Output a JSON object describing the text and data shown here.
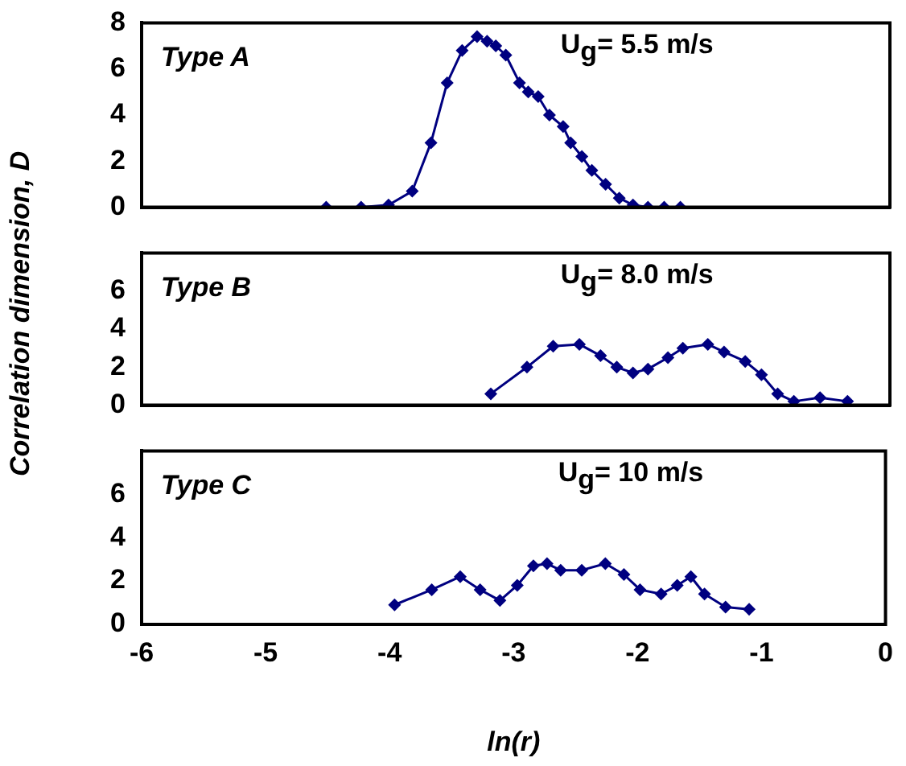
{
  "chart_data": [
    {
      "type": "line",
      "annotations": [
        "Type A",
        "U$_{g}$= 5.5 m/s"
      ],
      "xlim": [
        -6,
        0
      ],
      "xticks": [
        -6,
        -5,
        -4,
        -3,
        -2,
        -1,
        0
      ],
      "ylim": [
        0,
        8
      ],
      "yticks": [
        0,
        2,
        4,
        6,
        8
      ],
      "tick_labels": "y",
      "marker": "diamond",
      "grid": false,
      "legend": false,
      "series": [
        {
          "color": "#000080",
          "x": [
            -4.52,
            -4.24,
            -4.02,
            -3.83,
            -3.68,
            -3.55,
            -3.43,
            -3.31,
            -3.23,
            -3.16,
            -3.08,
            -2.97,
            -2.9,
            -2.82,
            -2.73,
            -2.62,
            -2.56,
            -2.47,
            -2.39,
            -2.28,
            -2.17,
            -2.06,
            -1.94,
            -1.81,
            -1.68
          ],
          "values": [
            0,
            0,
            0.1,
            0.7,
            2.8,
            5.4,
            6.8,
            7.4,
            7.2,
            7.0,
            6.6,
            5.4,
            5.0,
            4.8,
            4.0,
            3.5,
            2.8,
            2.2,
            1.6,
            1.0,
            0.4,
            0.1,
            0,
            0,
            0
          ]
        }
      ]
    },
    {
      "type": "line",
      "annotations": [
        "Type B",
        "U$_{g}$= 8.0 m/s"
      ],
      "ylabel": "Correlation dimension, D",
      "xlim": [
        -6,
        0
      ],
      "xticks": [
        -6,
        -5,
        -4,
        -3,
        -2,
        -1,
        0
      ],
      "ylim": [
        0,
        8
      ],
      "yticks": [
        0,
        2,
        4,
        6
      ],
      "tick_labels": "y",
      "marker": "diamond",
      "grid": false,
      "legend": false,
      "series": [
        {
          "color": "#000080",
          "x": [
            -3.2,
            -2.91,
            -2.7,
            -2.49,
            -2.32,
            -2.19,
            -2.06,
            -1.94,
            -1.78,
            -1.66,
            -1.46,
            -1.33,
            -1.16,
            -1.03,
            -0.9,
            -0.77,
            -0.56,
            -0.34
          ],
          "values": [
            0.6,
            2.0,
            3.1,
            3.2,
            2.6,
            2.0,
            1.7,
            1.9,
            2.5,
            3.0,
            3.2,
            2.8,
            2.3,
            1.6,
            0.6,
            0.2,
            0.4,
            0.2
          ]
        }
      ]
    },
    {
      "type": "line",
      "annotations": [
        "Type C",
        "U$_{g}$= 10 m/s"
      ],
      "xlabel": "ln(r)",
      "xlim": [
        -6,
        0
      ],
      "xticks": [
        -6,
        -5,
        -4,
        -3,
        -2,
        -1,
        0
      ],
      "ylim": [
        0,
        8
      ],
      "yticks": [
        0,
        2,
        4,
        6
      ],
      "marker": "diamond",
      "grid": false,
      "legend": false,
      "series": [
        {
          "color": "#000080",
          "x": [
            -3.96,
            -3.66,
            -3.43,
            -3.27,
            -3.11,
            -2.97,
            -2.84,
            -2.73,
            -2.62,
            -2.45,
            -2.26,
            -2.11,
            -1.98,
            -1.81,
            -1.68,
            -1.57,
            -1.46,
            -1.29,
            -1.1
          ],
          "values": [
            0.9,
            1.6,
            2.2,
            1.6,
            1.1,
            1.8,
            2.7,
            2.8,
            2.5,
            2.5,
            2.8,
            2.3,
            1.6,
            1.4,
            1.8,
            2.2,
            1.4,
            0.8,
            0.7
          ]
        }
      ]
    }
  ]
}
